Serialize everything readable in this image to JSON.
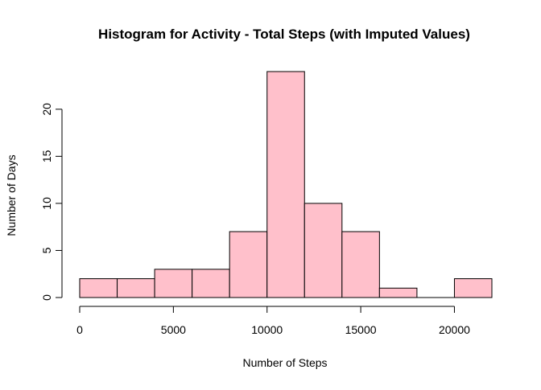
{
  "chart_data": {
    "type": "bar",
    "title": "Histogram for Activity - Total Steps (with Imputed Values)",
    "xlabel": "Number of Steps",
    "ylabel": "Number of Days",
    "bins": [
      {
        "start": 0,
        "end": 2000,
        "count": 2
      },
      {
        "start": 2000,
        "end": 4000,
        "count": 2
      },
      {
        "start": 4000,
        "end": 6000,
        "count": 3
      },
      {
        "start": 6000,
        "end": 8000,
        "count": 3
      },
      {
        "start": 8000,
        "end": 10000,
        "count": 7
      },
      {
        "start": 10000,
        "end": 12000,
        "count": 24
      },
      {
        "start": 12000,
        "end": 14000,
        "count": 10
      },
      {
        "start": 14000,
        "end": 16000,
        "count": 7
      },
      {
        "start": 16000,
        "end": 18000,
        "count": 1
      },
      {
        "start": 18000,
        "end": 20000,
        "count": 0
      },
      {
        "start": 20000,
        "end": 22000,
        "count": 2
      }
    ],
    "x_ticks": [
      0,
      5000,
      10000,
      15000,
      20000
    ],
    "x_tick_labels": [
      "0",
      "5000",
      "10000",
      "15000",
      "20000"
    ],
    "y_ticks": [
      0,
      5,
      10,
      15,
      20
    ],
    "y_tick_labels": [
      "0",
      "5",
      "10",
      "15",
      "20"
    ],
    "xlim": [
      0,
      22000
    ],
    "ylim": [
      0,
      24
    ],
    "grid": false,
    "bar_color": "#FFC0CB",
    "border_color": "#000000"
  }
}
